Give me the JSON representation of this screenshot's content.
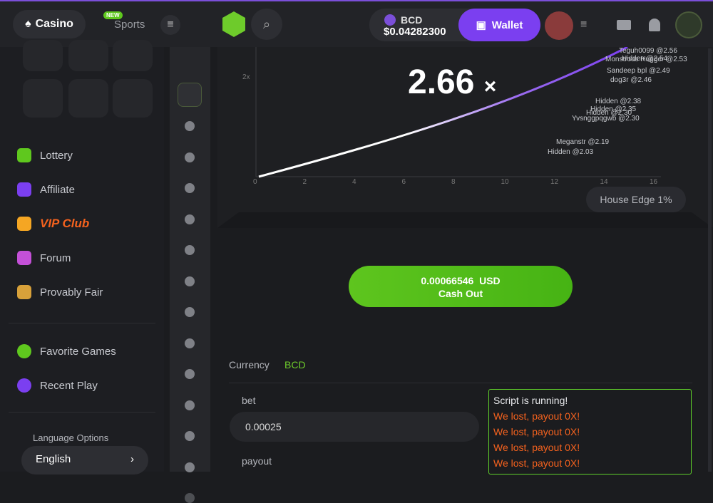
{
  "header": {
    "casino": "Casino",
    "new_badge": "NEW",
    "sports": "Sports",
    "currency": "BCD",
    "balance": "$0.04282300",
    "wallet": "Wallet"
  },
  "sidebar": {
    "menu": [
      "Lottery",
      "Affiliate",
      "VIP Club",
      "Forum",
      "Provably Fair"
    ],
    "favorites": [
      "Favorite Games",
      "Recent Play"
    ],
    "language_title": "Language Options",
    "language": "English"
  },
  "game": {
    "multiplier": "2.66",
    "multiplier_sign": "×",
    "y_axis_label": "2x",
    "x_ticks": [
      "0",
      "2",
      "4",
      "6",
      "8",
      "10",
      "12",
      "14",
      "16"
    ],
    "players": [
      {
        "name": "Teguh0099",
        "payout": "@2.56"
      },
      {
        "name": "Hidden",
        "payout": "@2.54"
      },
      {
        "name": "Monstrous Hugger",
        "payout": "@2.53"
      },
      {
        "name": "Sandeep bpl",
        "payout": "@2.49"
      },
      {
        "name": "dog3r",
        "payout": "@2.46"
      },
      {
        "name": "Hidden",
        "payout": "@2.38"
      },
      {
        "name": "Hidden",
        "payout": "@2.35"
      },
      {
        "name": "Hidden",
        "payout": "@2.30"
      },
      {
        "name": "Yvsnggpqgwb",
        "payout": "@2.30"
      },
      {
        "name": "Meganstr",
        "payout": "@2.19"
      },
      {
        "name": "Hidden",
        "payout": "@2.03"
      }
    ],
    "house_edge": "House Edge 1%",
    "cashout_amount": "0.00066546",
    "cashout_currency": "USD",
    "cashout": "Cash Out"
  },
  "script": {
    "currency_label": "Currency",
    "currency": "BCD",
    "bet_label": "bet",
    "bet": "0.00025",
    "payout_label": "payout",
    "log": [
      "Script is running!",
      "We lost, payout 0X!",
      "We lost, payout 0X!",
      "We lost, payout 0X!",
      "We lost, payout 0X!"
    ]
  }
}
